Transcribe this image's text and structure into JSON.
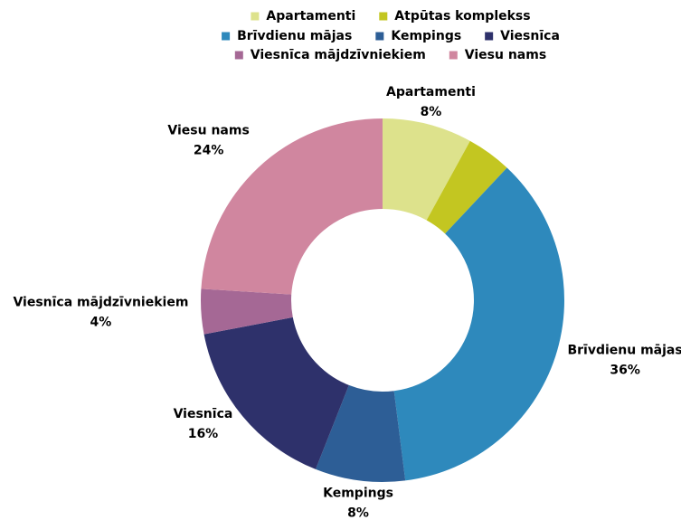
{
  "chart_data": {
    "type": "donut",
    "categories": [
      "Apartamenti",
      "Atpūtas komplekss",
      "Brīvdienu mājas",
      "Kempings",
      "Viesnīca",
      "Viesnīca mājdzīvniekiem",
      "Viesu nams"
    ],
    "values": [
      8,
      4,
      36,
      8,
      16,
      4,
      24
    ],
    "value_labels": [
      "8%",
      null,
      "36%",
      "8%",
      "16%",
      "4%",
      "24%"
    ],
    "colors": [
      "#dde28c",
      "#c3c621",
      "#2e89bc",
      "#2d5e96",
      "#2e316b",
      "#a56895",
      "#d0869f"
    ],
    "legend": "top"
  }
}
